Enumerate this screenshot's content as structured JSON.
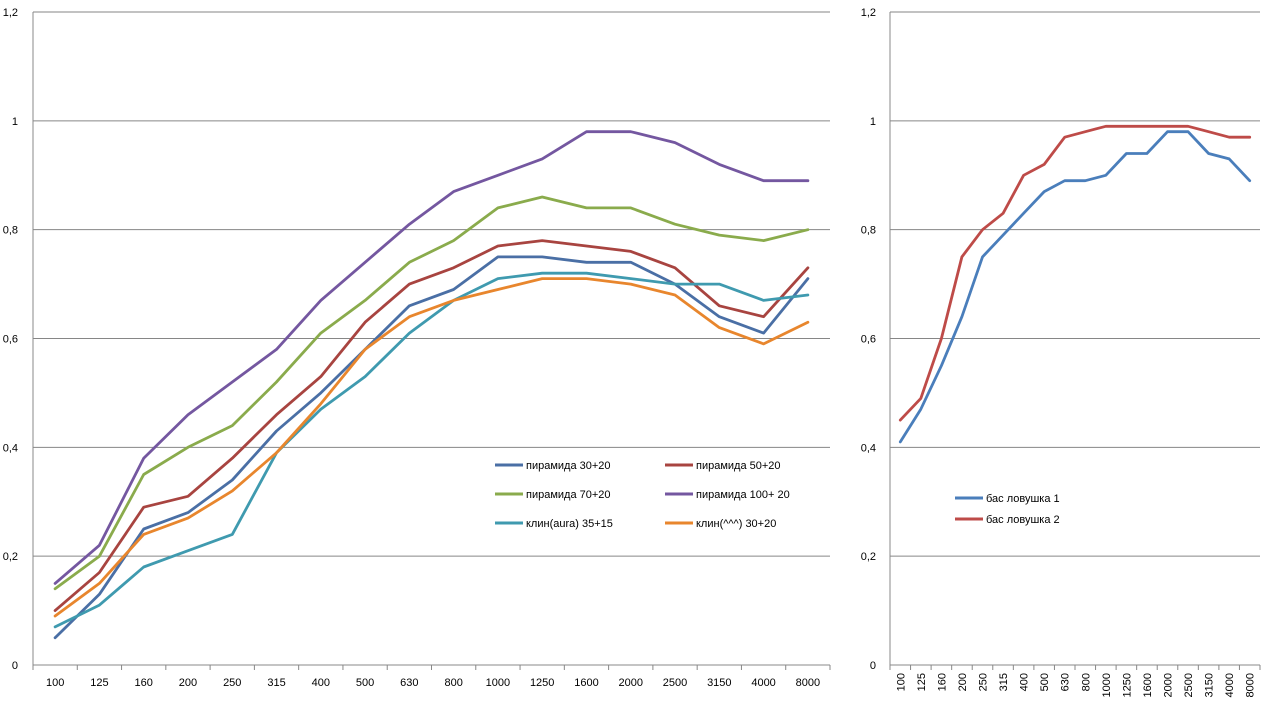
{
  "chart_data": [
    {
      "type": "line",
      "title": "",
      "xlabel": "",
      "ylabel": "",
      "ylim": [
        0,
        1.2
      ],
      "yticks": [
        "0",
        "0,2",
        "0,4",
        "0,6",
        "0,8",
        "1",
        "1,2"
      ],
      "grid": true,
      "legend_position": "center-right",
      "categories": [
        "100",
        "125",
        "160",
        "200",
        "250",
        "315",
        "400",
        "500",
        "630",
        "800",
        "1000",
        "1250",
        "1600",
        "2000",
        "2500",
        "3150",
        "4000",
        "8000"
      ],
      "series": [
        {
          "name": "пирамида 30+20",
          "color": "#4a6fa5",
          "values": [
            0.05,
            0.13,
            0.25,
            0.28,
            0.34,
            0.43,
            0.5,
            0.58,
            0.66,
            0.69,
            0.75,
            0.75,
            0.74,
            0.74,
            0.7,
            0.64,
            0.61,
            0.71
          ]
        },
        {
          "name": "пирамида 50+20",
          "color": "#a84440",
          "values": [
            0.1,
            0.17,
            0.29,
            0.31,
            0.38,
            0.46,
            0.53,
            0.63,
            0.7,
            0.73,
            0.77,
            0.78,
            0.77,
            0.76,
            0.73,
            0.66,
            0.64,
            0.73
          ]
        },
        {
          "name": "пирамида 70+20",
          "color": "#8aab4c",
          "values": [
            0.14,
            0.2,
            0.35,
            0.4,
            0.44,
            0.52,
            0.61,
            0.67,
            0.74,
            0.78,
            0.84,
            0.86,
            0.84,
            0.84,
            0.81,
            0.79,
            0.78,
            0.8
          ]
        },
        {
          "name": "пирамида 100+ 20",
          "color": "#7457a0",
          "values": [
            0.15,
            0.22,
            0.38,
            0.46,
            0.52,
            0.58,
            0.67,
            0.74,
            0.81,
            0.87,
            0.9,
            0.93,
            0.98,
            0.98,
            0.96,
            0.92,
            0.89,
            0.89
          ]
        },
        {
          "name": "клин(aura) 35+15",
          "color": "#3f9aaf",
          "values": [
            0.07,
            0.11,
            0.18,
            0.21,
            0.24,
            0.39,
            0.47,
            0.53,
            0.61,
            0.67,
            0.71,
            0.72,
            0.72,
            0.71,
            0.7,
            0.7,
            0.67,
            0.68
          ]
        },
        {
          "name": "клин(^^^) 30+20",
          "color": "#e8862d",
          "values": [
            0.09,
            0.15,
            0.24,
            0.27,
            0.32,
            0.39,
            0.48,
            0.58,
            0.64,
            0.67,
            0.69,
            0.71,
            0.71,
            0.7,
            0.68,
            0.62,
            0.59,
            0.63
          ]
        }
      ]
    },
    {
      "type": "line",
      "title": "",
      "xlabel": "",
      "ylabel": "",
      "ylim": [
        0,
        1.2
      ],
      "yticks": [
        "0",
        "0,2",
        "0,4",
        "0,6",
        "0,8",
        "1",
        "1,2"
      ],
      "grid": true,
      "legend_position": "bottom-left",
      "categories": [
        "100",
        "125",
        "160",
        "200",
        "250",
        "315",
        "400",
        "500",
        "630",
        "800",
        "1000",
        "1250",
        "1600",
        "2000",
        "2500",
        "3150",
        "4000",
        "8000"
      ],
      "series": [
        {
          "name": "бас ловушка 1",
          "color": "#4a7ebb",
          "values": [
            0.41,
            0.47,
            0.55,
            0.64,
            0.75,
            0.79,
            0.83,
            0.87,
            0.89,
            0.89,
            0.9,
            0.94,
            0.94,
            0.98,
            0.98,
            0.94,
            0.93,
            0.89
          ]
        },
        {
          "name": "бас ловушка 2",
          "color": "#be4b48",
          "values": [
            0.45,
            0.49,
            0.6,
            0.75,
            0.8,
            0.83,
            0.9,
            0.92,
            0.97,
            0.98,
            0.99,
            0.99,
            0.99,
            0.99,
            0.99,
            0.98,
            0.97,
            0.97
          ]
        }
      ]
    }
  ]
}
